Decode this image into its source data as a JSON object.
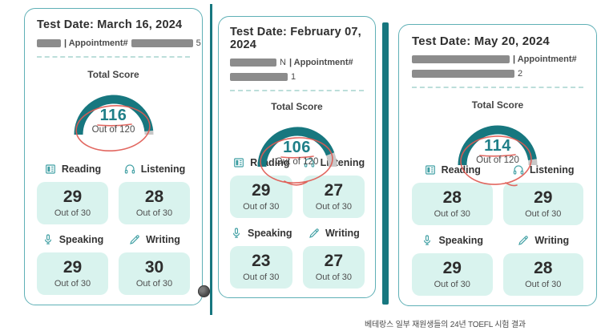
{
  "caption": "베테랑스 일부 재원생들의 24년 TOEFL 시험 결과",
  "colors": {
    "teal_dark": "#17777F",
    "teal_border": "#5FB0B6",
    "teal_icon": "#3F9FA3",
    "teal_score": "#1F7F88",
    "mint": "#D9F3EE",
    "gray_bar": "#8C8C8C",
    "gray_arc": "#C8C8C8",
    "text_dark": "#2F2F2F",
    "text_gray": "#4F4F4F",
    "red": "#E05A52",
    "divider": "#BCDEDA"
  },
  "icons": {
    "reading": "reading-icon",
    "listening": "listening-icon",
    "speaking": "speaking-icon",
    "writing": "writing-icon",
    "watermark": "dark-circle-badge"
  },
  "cards": [
    {
      "test_date": "Test Date: March 16, 2024",
      "appointment": {
        "bar1_tail": "",
        "label": "| Appointment#",
        "bar2_tail": "5"
      },
      "total_label": "Total Score",
      "score": "116",
      "score_value": 116,
      "score_max": 120,
      "out_of": "Out of 120",
      "sections": [
        {
          "name": "Reading",
          "score": "29",
          "out_of": "Out of 30"
        },
        {
          "name": "Listening",
          "score": "28",
          "out_of": "Out of 30"
        },
        {
          "name": "Speaking",
          "score": "29",
          "out_of": "Out of 30"
        },
        {
          "name": "Writing",
          "score": "30",
          "out_of": "Out of 30"
        }
      ]
    },
    {
      "test_date": "Test Date: February 07, 2024",
      "appointment": {
        "bar1_tail": "N",
        "label": "| Appointment#",
        "line2_tail": "1"
      },
      "total_label": "Total Score",
      "score": "106",
      "score_value": 106,
      "score_max": 120,
      "out_of": "Out of 120",
      "sections": [
        {
          "name": "Reading",
          "score": "29",
          "out_of": "Out of 30"
        },
        {
          "name": "Listening",
          "score": "27",
          "out_of": "Out of 30"
        },
        {
          "name": "Speaking",
          "score": "23",
          "out_of": "Out of 30"
        },
        {
          "name": "Writing",
          "score": "27",
          "out_of": "Out of 30"
        }
      ]
    },
    {
      "test_date": "Test Date: May 20, 2024",
      "appointment": {
        "bar1_tail": "",
        "label": "| Appointment#",
        "line2_tail": "2"
      },
      "total_label": "Total Score",
      "score": "114",
      "score_value": 114,
      "score_max": 120,
      "out_of": "Out of 120",
      "sections": [
        {
          "name": "Reading",
          "score": "28",
          "out_of": "Out of 30"
        },
        {
          "name": "Listening",
          "score": "29",
          "out_of": "Out of 30"
        },
        {
          "name": "Speaking",
          "score": "29",
          "out_of": "Out of 30"
        },
        {
          "name": "Writing",
          "score": "28",
          "out_of": "Out of 30"
        }
      ]
    }
  ]
}
